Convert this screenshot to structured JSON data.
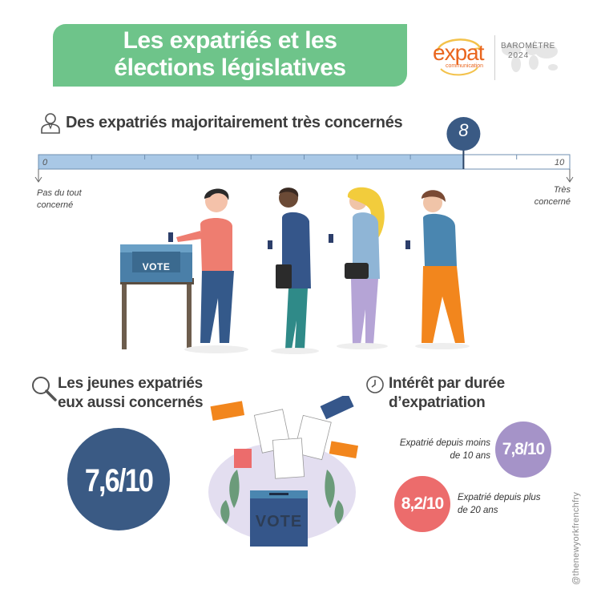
{
  "header": {
    "title_line1": "Les expatriés et les",
    "title_line2": "élections législatives",
    "logo_main": "expat",
    "logo_sub": "communication",
    "barometer_line1": "BAROMÈTRE",
    "barometer_line2": "2024"
  },
  "colors": {
    "title_bg": "#6ec48a",
    "scale_fill": "#a9c8e6",
    "marker": "#3a5a84",
    "circle_young": "#3a5a84",
    "circle_under10": "#a593c8",
    "circle_over20": "#ec6c6c",
    "logo": "#e9661f"
  },
  "section_scale": {
    "heading": "Des expatriés majoritairement très concernés",
    "icon": "person-icon",
    "label_left_line1": "Pas du tout",
    "label_left_line2": "concerné",
    "label_right_line1": "Très",
    "label_right_line2": "concerné",
    "vote_box_text": "VOTE"
  },
  "section_young": {
    "heading_line1": "Les jeunes expatriés",
    "heading_line2": "eux aussi concernés",
    "icon": "search-icon",
    "value": "7,6/10",
    "vote_box_text": "VOTE"
  },
  "section_duration": {
    "heading_line1": "Intérêt par durée",
    "heading_line2": "d’expatriation",
    "icon": "clock-icon",
    "item1_line1": "Expatrié depuis moins",
    "item1_line2": "de 10 ans",
    "item1_value": "7,8/10",
    "item2_line1": "Expatrié depuis plus",
    "item2_line2": "de 20 ans",
    "item2_value": "8,2/10"
  },
  "chart_data": {
    "type": "bar",
    "orientation": "horizontal",
    "xlim": [
      0,
      10
    ],
    "tick_labels": [
      "0",
      "10"
    ],
    "value": 8,
    "value_label": "8"
  },
  "watermark": "@thenewyorkfrenchfry"
}
